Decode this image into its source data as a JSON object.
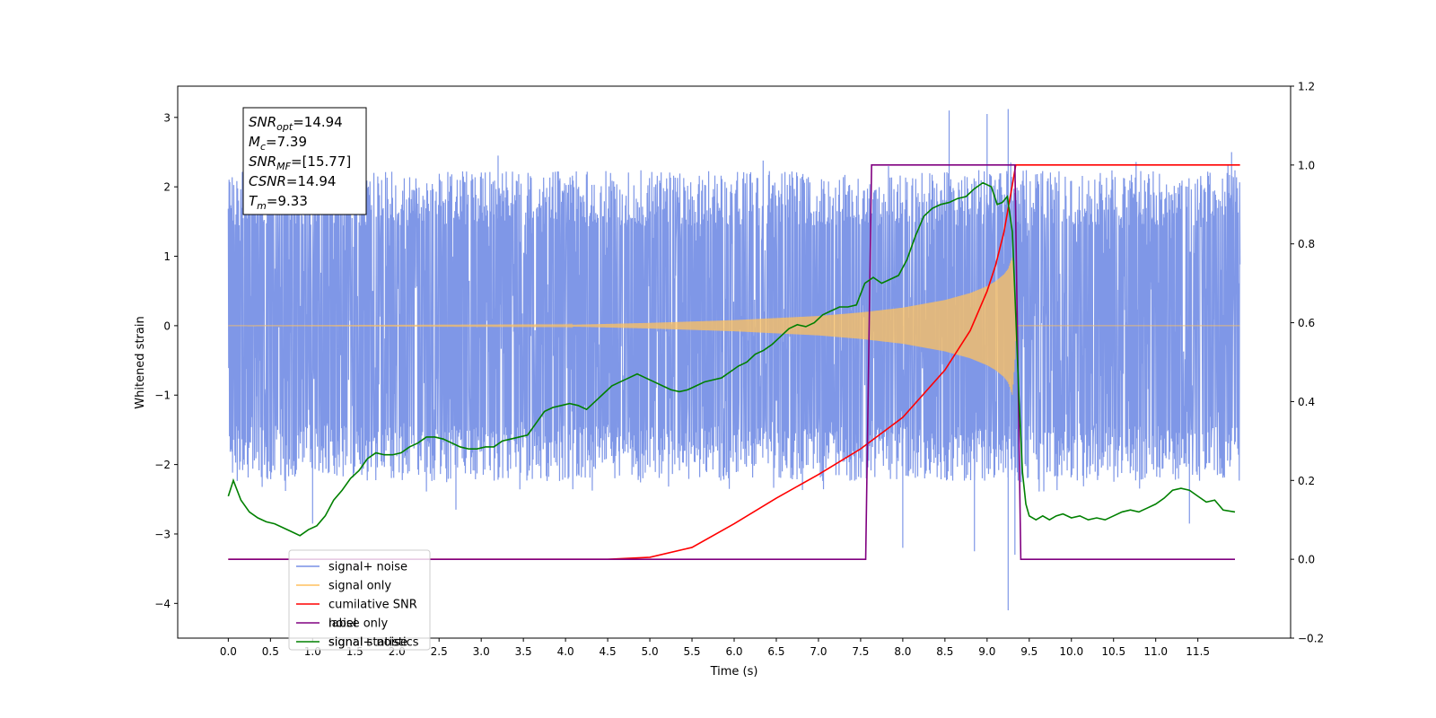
{
  "chart_data": {
    "type": "line",
    "xlabel": "Time (s)",
    "ylabel": "Whitened strain",
    "xlim": [
      -0.6,
      12.6
    ],
    "ylim": [
      -4.5,
      3.45
    ],
    "y2lim": [
      -0.2,
      1.2
    ],
    "x_ticks": [
      0.0,
      0.5,
      1.0,
      1.5,
      2.0,
      2.5,
      3.0,
      3.5,
      4.0,
      4.5,
      5.0,
      5.5,
      6.0,
      6.5,
      7.0,
      7.5,
      8.0,
      8.5,
      9.0,
      9.5,
      10.0,
      10.5,
      11.0,
      11.5
    ],
    "x_tick_labels": [
      "0.0",
      "0.5",
      "1.0",
      "1.5",
      "2.0",
      "2.5",
      "3.0",
      "3.5",
      "4.0",
      "4.5",
      "5.0",
      "5.5",
      "6.0",
      "6.5",
      "7.0",
      "7.5",
      "8.0",
      "8.5",
      "9.0",
      "9.5",
      "10.0",
      "10.5",
      "11.0",
      "11.5"
    ],
    "y_ticks": [
      -4,
      -3,
      -2,
      -1,
      0,
      1,
      2,
      3
    ],
    "y_tick_labels": [
      "−4",
      "−3",
      "−2",
      "−1",
      "0",
      "1",
      "2",
      "3"
    ],
    "y2_ticks": [
      -0.2,
      0.0,
      0.2,
      0.4,
      0.6,
      0.8,
      1.0,
      1.2
    ],
    "y2_tick_labels": [
      "−0.2",
      "0.0",
      "0.2",
      "0.4",
      "0.6",
      "0.8",
      "1.0",
      "1.2"
    ],
    "annotation": [
      {
        "sym": "SNR",
        "sub": "opt",
        "val": "=14.94"
      },
      {
        "sym": "M",
        "sub": "c",
        "val": "=7.39"
      },
      {
        "sym": "SNR",
        "sub": "MF",
        "val": "=[15.77]"
      },
      {
        "sym": "CSNR",
        "sub": "",
        "val": "=14.94"
      },
      {
        "sym": "T",
        "sub": "m",
        "val": "=9.33"
      }
    ],
    "legend_position": "lower-left",
    "legend": [
      {
        "label": "signal+ noise",
        "color": "#7891e6"
      },
      {
        "label": "signal only",
        "color": "#ffc15e"
      },
      {
        "label": "cumilative SNR",
        "color": "#ff0000"
      },
      {
        "label": "label",
        "color": "#800080"
      },
      {
        "label": "signal statistics",
        "color": "#008000"
      }
    ],
    "legend_overlap_text": [
      {
        "text": "noise only",
        "series": 3
      },
      {
        "text": "signal+ noise",
        "series": 4
      }
    ],
    "series": [
      {
        "name": "signal+ noise",
        "axis": "left",
        "color": "#7891e6",
        "x_range": [
          0.0,
          12.0
        ],
        "typical_envelope": [
          -1.6,
          1.6
        ],
        "spike_peaks": [
          {
            "x": 0.3,
            "y": 2.2
          },
          {
            "x": 1.0,
            "y": -2.85
          },
          {
            "x": 1.3,
            "y": 2.55
          },
          {
            "x": 2.7,
            "y": -2.65
          },
          {
            "x": 3.2,
            "y": 2.45
          },
          {
            "x": 8.0,
            "y": -3.2
          },
          {
            "x": 8.55,
            "y": 3.1
          },
          {
            "x": 8.85,
            "y": -3.25
          },
          {
            "x": 9.0,
            "y": 3.05
          },
          {
            "x": 9.25,
            "y": 3.12
          },
          {
            "x": 9.25,
            "y": -4.1
          },
          {
            "x": 9.33,
            "y": -3.3
          },
          {
            "x": 11.9,
            "y": 2.5
          },
          {
            "x": 11.4,
            "y": -2.85
          }
        ]
      },
      {
        "name": "signal only",
        "axis": "left",
        "color": "#ffc15e",
        "envelope": {
          "x": [
            0.0,
            4.0,
            5.0,
            6.0,
            7.0,
            7.5,
            8.0,
            8.5,
            8.8,
            9.0,
            9.1,
            9.2,
            9.25,
            9.3,
            9.33,
            9.35,
            12.0
          ],
          "amp": [
            0.0,
            0.01,
            0.04,
            0.08,
            0.14,
            0.19,
            0.26,
            0.37,
            0.47,
            0.57,
            0.64,
            0.74,
            0.82,
            1.0,
            0.5,
            0.0,
            0.0
          ]
        }
      },
      {
        "name": "cumilative SNR",
        "axis": "right",
        "color": "#ff0000",
        "x": [
          0.0,
          4.5,
          5.0,
          5.5,
          6.0,
          6.5,
          7.0,
          7.5,
          8.0,
          8.5,
          8.8,
          9.0,
          9.1,
          9.2,
          9.3,
          9.34,
          12.0
        ],
        "y": [
          0.0,
          0.0,
          0.005,
          0.03,
          0.09,
          0.155,
          0.215,
          0.28,
          0.36,
          0.48,
          0.58,
          0.68,
          0.745,
          0.83,
          0.95,
          1.0,
          1.0
        ]
      },
      {
        "name": "label",
        "axis": "right",
        "color": "#800080",
        "x": [
          0.0,
          7.56,
          7.63,
          9.33,
          9.4,
          11.94
        ],
        "y": [
          0.0,
          0.0,
          1.0,
          1.0,
          0.0,
          0.0
        ]
      },
      {
        "name": "signal statistics",
        "axis": "right",
        "color": "#008000",
        "x": [
          0.0,
          0.06,
          0.15,
          0.25,
          0.35,
          0.45,
          0.55,
          0.65,
          0.75,
          0.85,
          0.95,
          1.05,
          1.15,
          1.25,
          1.35,
          1.45,
          1.55,
          1.65,
          1.75,
          1.85,
          1.95,
          2.05,
          2.15,
          2.25,
          2.35,
          2.45,
          2.55,
          2.65,
          2.75,
          2.85,
          2.95,
          3.05,
          3.15,
          3.25,
          3.35,
          3.45,
          3.55,
          3.65,
          3.75,
          3.85,
          3.95,
          4.05,
          4.15,
          4.25,
          4.35,
          4.45,
          4.55,
          4.65,
          4.75,
          4.85,
          4.95,
          5.05,
          5.15,
          5.25,
          5.35,
          5.45,
          5.55,
          5.65,
          5.75,
          5.85,
          5.95,
          6.05,
          6.15,
          6.25,
          6.35,
          6.45,
          6.55,
          6.65,
          6.75,
          6.85,
          6.95,
          7.05,
          7.15,
          7.25,
          7.35,
          7.45,
          7.55,
          7.65,
          7.75,
          7.85,
          7.95,
          8.05,
          8.15,
          8.25,
          8.35,
          8.45,
          8.55,
          8.65,
          8.75,
          8.85,
          8.95,
          9.05,
          9.12,
          9.18,
          9.24,
          9.3,
          9.34,
          9.38,
          9.42,
          9.46,
          9.5,
          9.58,
          9.66,
          9.74,
          9.82,
          9.9,
          10.0,
          10.1,
          10.2,
          10.3,
          10.4,
          10.5,
          10.6,
          10.7,
          10.8,
          10.9,
          11.0,
          11.1,
          11.2,
          11.3,
          11.4,
          11.5,
          11.6,
          11.7,
          11.8,
          11.94
        ],
        "y": [
          0.16,
          0.2,
          0.15,
          0.12,
          0.105,
          0.095,
          0.09,
          0.08,
          0.07,
          0.06,
          0.075,
          0.085,
          0.11,
          0.15,
          0.175,
          0.205,
          0.225,
          0.255,
          0.27,
          0.265,
          0.265,
          0.27,
          0.285,
          0.295,
          0.31,
          0.31,
          0.305,
          0.295,
          0.285,
          0.28,
          0.28,
          0.285,
          0.285,
          0.3,
          0.305,
          0.31,
          0.315,
          0.345,
          0.375,
          0.385,
          0.39,
          0.395,
          0.39,
          0.38,
          0.4,
          0.42,
          0.44,
          0.45,
          0.46,
          0.47,
          0.46,
          0.45,
          0.44,
          0.43,
          0.425,
          0.43,
          0.44,
          0.45,
          0.455,
          0.46,
          0.475,
          0.49,
          0.5,
          0.52,
          0.53,
          0.545,
          0.565,
          0.585,
          0.595,
          0.59,
          0.6,
          0.62,
          0.63,
          0.64,
          0.64,
          0.645,
          0.7,
          0.715,
          0.7,
          0.71,
          0.72,
          0.76,
          0.82,
          0.87,
          0.89,
          0.9,
          0.905,
          0.915,
          0.92,
          0.94,
          0.955,
          0.945,
          0.9,
          0.905,
          0.92,
          0.83,
          0.62,
          0.4,
          0.22,
          0.14,
          0.11,
          0.1,
          0.11,
          0.1,
          0.11,
          0.115,
          0.105,
          0.11,
          0.1,
          0.105,
          0.1,
          0.11,
          0.12,
          0.125,
          0.12,
          0.13,
          0.14,
          0.155,
          0.175,
          0.18,
          0.175,
          0.16,
          0.145,
          0.15,
          0.125,
          0.12
        ]
      }
    ]
  }
}
